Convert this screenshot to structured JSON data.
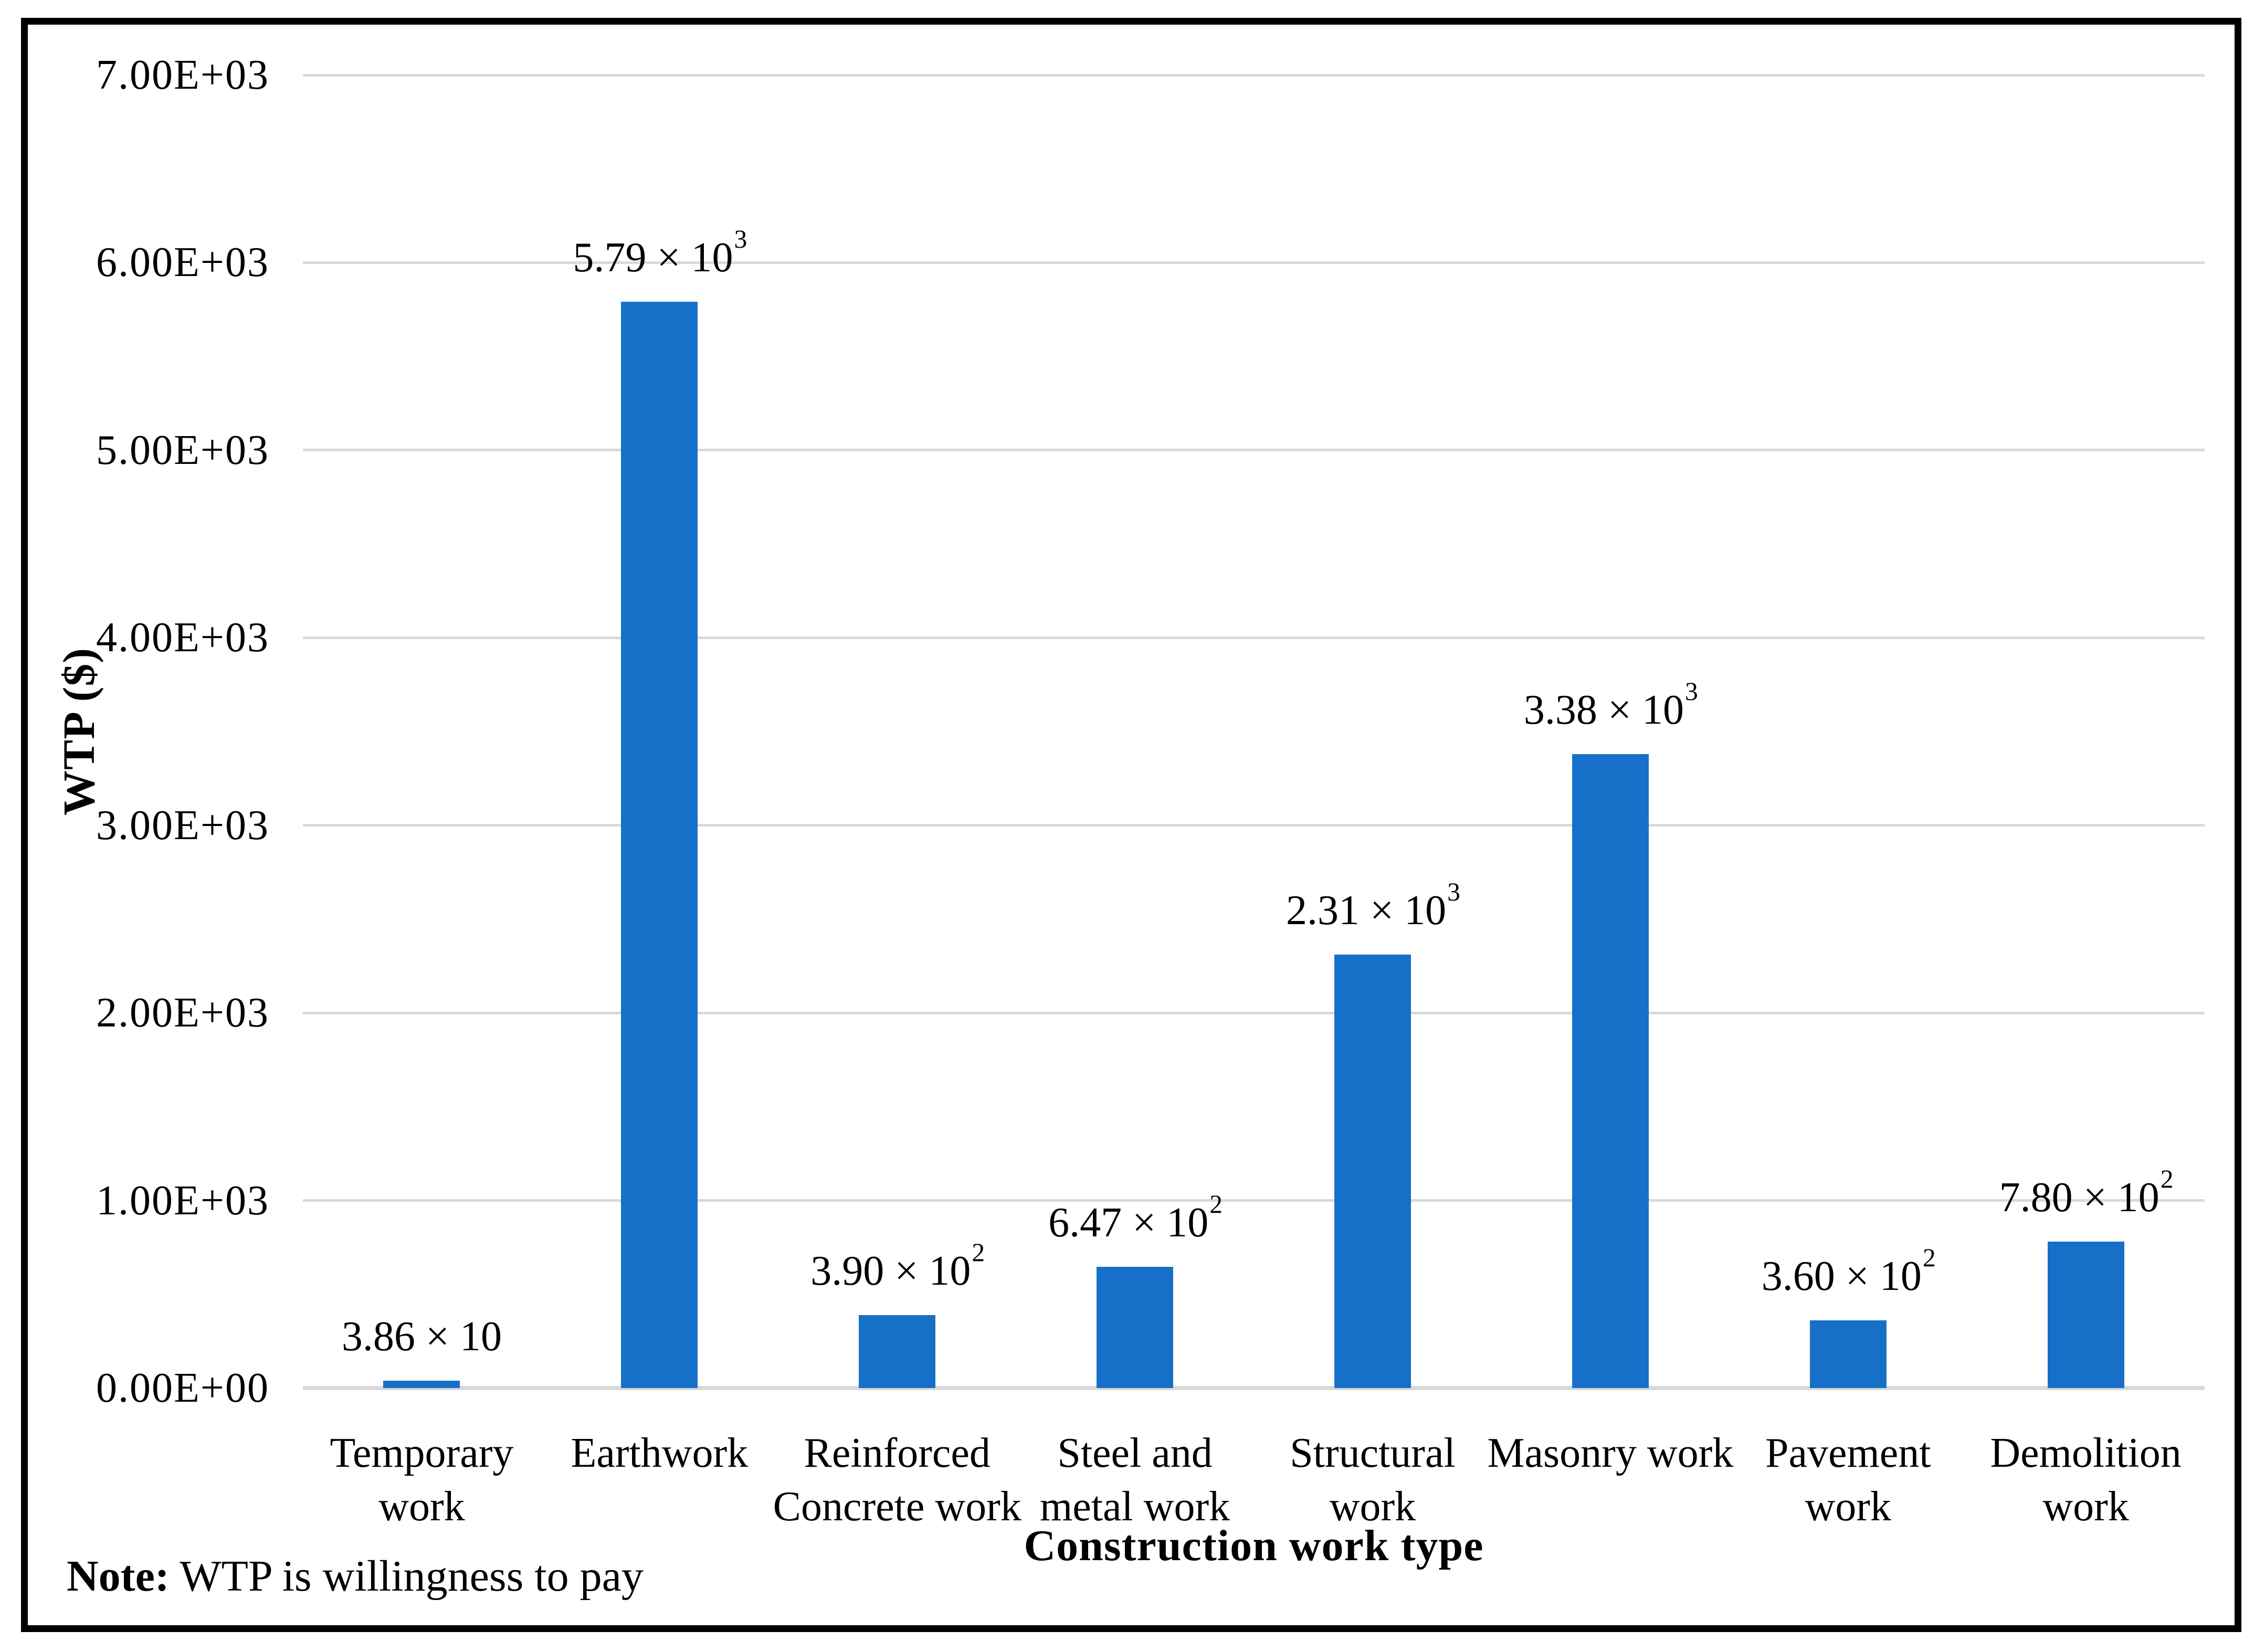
{
  "chart_data": {
    "type": "bar",
    "title": "",
    "xlabel": "Construction work type",
    "ylabel": "WTP ($)",
    "categories": [
      "Temporary work",
      "Earthwork",
      "Reinforced Concrete work",
      "Steel and metal work",
      "Structural work",
      "Masonry work",
      "Pavement work",
      "Demolition work"
    ],
    "category_lines": [
      [
        "Temporary",
        "work"
      ],
      [
        "Earthwork"
      ],
      [
        "Reinforced",
        "Concrete work"
      ],
      [
        "Steel and",
        "metal work"
      ],
      [
        "Structural",
        "work"
      ],
      [
        "Masonry work"
      ],
      [
        "Pavement",
        "work"
      ],
      [
        "Demolition",
        "work"
      ]
    ],
    "values": [
      38.6,
      5790,
      390,
      647,
      2310,
      3380,
      360,
      780
    ],
    "data_labels": [
      {
        "base": "3.86 × 10",
        "sup": ""
      },
      {
        "base": "5.79 × 10",
        "sup": "3"
      },
      {
        "base": "3.90 × 10",
        "sup": "2"
      },
      {
        "base": "6.47 × 10",
        "sup": "2"
      },
      {
        "base": "2.31 × 10",
        "sup": "3"
      },
      {
        "base": "3.38 × 10",
        "sup": "3"
      },
      {
        "base": "3.60 × 10",
        "sup": "2"
      },
      {
        "base": "7.80 × 10",
        "sup": "2"
      }
    ],
    "y_ticks": [
      "0.00E+00",
      "1.00E+03",
      "2.00E+03",
      "3.00E+03",
      "4.00E+03",
      "5.00E+03",
      "6.00E+03",
      "7.00E+03"
    ],
    "ylim": [
      0,
      7000
    ],
    "grid": true,
    "legend": false,
    "bar_color": "#1770c8",
    "gridline_color": "#d9d9d9",
    "frame_color": "#000000",
    "note_bold": "Note:",
    "note_text": " WTP is willingness to pay"
  }
}
